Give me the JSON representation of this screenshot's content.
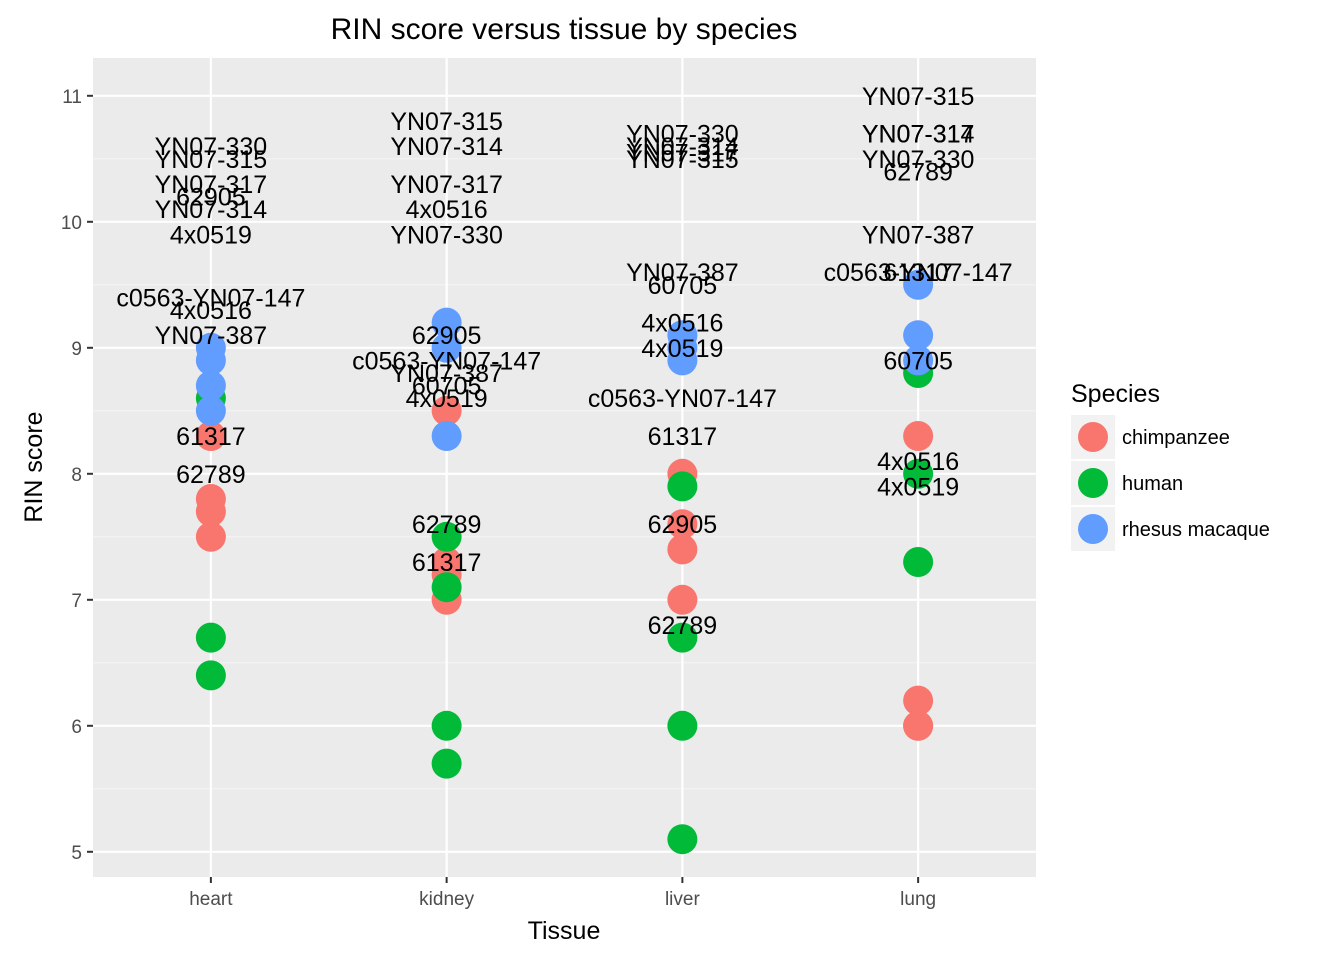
{
  "chart_data": {
    "type": "scatter",
    "title": "RIN score versus tissue by species",
    "xlabel": "Tissue",
    "ylabel": "RIN score",
    "categories": [
      "heart",
      "kidney",
      "liver",
      "lung"
    ],
    "ylim": [
      4.8,
      11.3
    ],
    "yticks": [
      5,
      6,
      7,
      8,
      9,
      10,
      11
    ],
    "grid": true,
    "legend": {
      "title": "Species",
      "position": "right",
      "entries": [
        {
          "name": "chimpanzee",
          "color": "#F8766D"
        },
        {
          "name": "human",
          "color": "#00BA38"
        },
        {
          "name": "rhesus macaque",
          "color": "#619CFF"
        }
      ]
    },
    "series": [
      {
        "name": "chimpanzee",
        "color": "#F8766D",
        "points": [
          {
            "x": "heart",
            "y": 7.8
          },
          {
            "x": "heart",
            "y": 7.7
          },
          {
            "x": "heart",
            "y": 7.5
          },
          {
            "x": "heart",
            "y": 8.3
          },
          {
            "x": "kidney",
            "y": 8.5
          },
          {
            "x": "kidney",
            "y": 7.3
          },
          {
            "x": "kidney",
            "y": 7.2
          },
          {
            "x": "kidney",
            "y": 7.0
          },
          {
            "x": "liver",
            "y": 8.0
          },
          {
            "x": "liver",
            "y": 7.6
          },
          {
            "x": "liver",
            "y": 7.4
          },
          {
            "x": "liver",
            "y": 7.0
          },
          {
            "x": "lung",
            "y": 8.3
          },
          {
            "x": "lung",
            "y": 6.2
          },
          {
            "x": "lung",
            "y": 6.0
          },
          {
            "x": "lung",
            "y": 6.0
          }
        ]
      },
      {
        "name": "human",
        "color": "#00BA38",
        "points": [
          {
            "x": "heart",
            "y": 8.6
          },
          {
            "x": "heart",
            "y": 6.7
          },
          {
            "x": "heart",
            "y": 6.4
          },
          {
            "x": "kidney",
            "y": 7.5
          },
          {
            "x": "kidney",
            "y": 7.1
          },
          {
            "x": "kidney",
            "y": 6.0
          },
          {
            "x": "kidney",
            "y": 5.7
          },
          {
            "x": "liver",
            "y": 7.9
          },
          {
            "x": "liver",
            "y": 6.7
          },
          {
            "x": "liver",
            "y": 6.0
          },
          {
            "x": "liver",
            "y": 5.1
          },
          {
            "x": "lung",
            "y": 8.8
          },
          {
            "x": "lung",
            "y": 8.0
          },
          {
            "x": "lung",
            "y": 7.3
          }
        ]
      },
      {
        "name": "rhesus macaque",
        "color": "#619CFF",
        "points": [
          {
            "x": "heart",
            "y": 9.0
          },
          {
            "x": "heart",
            "y": 8.9
          },
          {
            "x": "heart",
            "y": 8.7
          },
          {
            "x": "heart",
            "y": 8.5
          },
          {
            "x": "kidney",
            "y": 9.2
          },
          {
            "x": "kidney",
            "y": 9.0
          },
          {
            "x": "kidney",
            "y": 8.3
          },
          {
            "x": "liver",
            "y": 9.1
          },
          {
            "x": "liver",
            "y": 9.0
          },
          {
            "x": "liver",
            "y": 8.9
          },
          {
            "x": "lung",
            "y": 9.5
          },
          {
            "x": "lung",
            "y": 9.1
          },
          {
            "x": "lung",
            "y": 8.9
          }
        ]
      }
    ],
    "annotations": [
      {
        "x": "heart",
        "y": 10.6,
        "text": "YN07-330"
      },
      {
        "x": "heart",
        "y": 10.5,
        "text": "YN07-315"
      },
      {
        "x": "heart",
        "y": 10.3,
        "text": "YN07-317"
      },
      {
        "x": "heart",
        "y": 10.2,
        "text": "62905"
      },
      {
        "x": "heart",
        "y": 10.1,
        "text": "YN07-314"
      },
      {
        "x": "heart",
        "y": 9.9,
        "text": "4x0519"
      },
      {
        "x": "heart",
        "y": 9.4,
        "text": "c0563-YN07-147"
      },
      {
        "x": "heart",
        "y": 9.3,
        "text": "4x0516"
      },
      {
        "x": "heart",
        "y": 9.1,
        "text": "YN07-387"
      },
      {
        "x": "heart",
        "y": 8.3,
        "text": "61317"
      },
      {
        "x": "heart",
        "y": 8.0,
        "text": "62789"
      },
      {
        "x": "kidney",
        "y": 10.8,
        "text": "YN07-315"
      },
      {
        "x": "kidney",
        "y": 10.6,
        "text": "YN07-314"
      },
      {
        "x": "kidney",
        "y": 10.3,
        "text": "YN07-317"
      },
      {
        "x": "kidney",
        "y": 10.1,
        "text": "4x0516"
      },
      {
        "x": "kidney",
        "y": 9.9,
        "text": "YN07-330"
      },
      {
        "x": "kidney",
        "y": 9.1,
        "text": "62905"
      },
      {
        "x": "kidney",
        "y": 8.9,
        "text": "c0563-YN07-147"
      },
      {
        "x": "kidney",
        "y": 8.8,
        "text": "YN07-387"
      },
      {
        "x": "kidney",
        "y": 8.7,
        "text": "60705"
      },
      {
        "x": "kidney",
        "y": 8.6,
        "text": "4x0519"
      },
      {
        "x": "kidney",
        "y": 7.6,
        "text": "62789"
      },
      {
        "x": "kidney",
        "y": 7.3,
        "text": "61317"
      },
      {
        "x": "liver",
        "y": 10.7,
        "text": "YN07-330"
      },
      {
        "x": "liver",
        "y": 10.6,
        "text": "YN07-314"
      },
      {
        "x": "liver",
        "y": 10.55,
        "text": "YN07-317"
      },
      {
        "x": "liver",
        "y": 10.5,
        "text": "YN07-315"
      },
      {
        "x": "liver",
        "y": 9.6,
        "text": "YN07-387"
      },
      {
        "x": "liver",
        "y": 9.5,
        "text": "60705"
      },
      {
        "x": "liver",
        "y": 9.2,
        "text": "4x0516"
      },
      {
        "x": "liver",
        "y": 9.0,
        "text": "4x0519"
      },
      {
        "x": "liver",
        "y": 8.6,
        "text": "c0563-YN07-147"
      },
      {
        "x": "liver",
        "y": 8.3,
        "text": "61317"
      },
      {
        "x": "liver",
        "y": 7.6,
        "text": "62905"
      },
      {
        "x": "liver",
        "y": 6.8,
        "text": "62789"
      },
      {
        "x": "lung",
        "y": 11.0,
        "text": "YN07-315"
      },
      {
        "x": "lung",
        "y": 10.7,
        "text": "YN07-314"
      },
      {
        "x": "lung",
        "y": 10.7,
        "text": "YN07-317"
      },
      {
        "x": "lung",
        "y": 10.5,
        "text": "YN07-330"
      },
      {
        "x": "lung",
        "y": 10.4,
        "text": "62789"
      },
      {
        "x": "lung",
        "y": 9.9,
        "text": "YN07-387"
      },
      {
        "x": "lung",
        "y": 9.6,
        "text": "c0563-YN07-147"
      },
      {
        "x": "lung",
        "y": 9.6,
        "text": "61317"
      },
      {
        "x": "lung",
        "y": 8.9,
        "text": "60705"
      },
      {
        "x": "lung",
        "y": 8.1,
        "text": "4x0516"
      },
      {
        "x": "lung",
        "y": 7.9,
        "text": "4x0519"
      }
    ]
  }
}
